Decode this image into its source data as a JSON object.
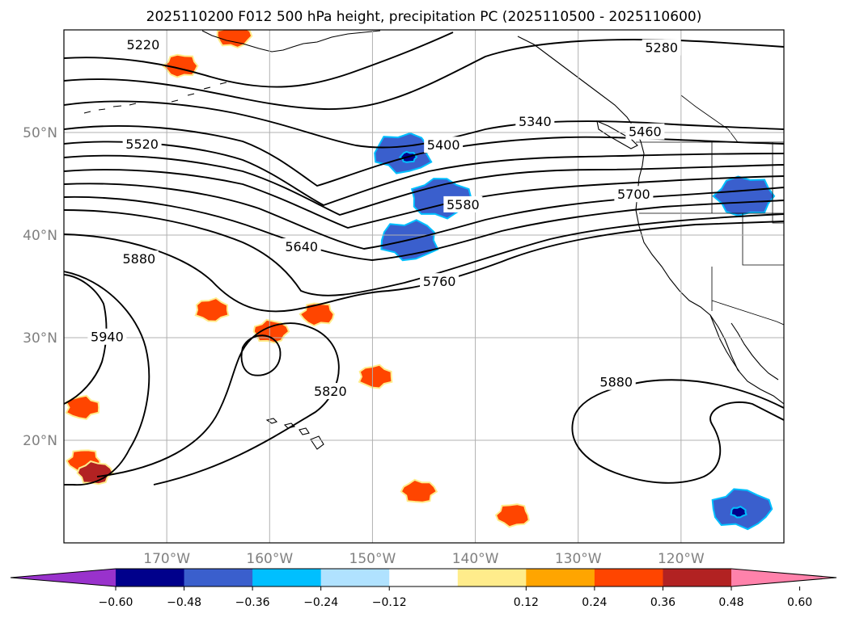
{
  "title": "2025110200 F012 500 hPa height, precipitation PC (2025110500 - 2025110600)",
  "lon_ticks": [
    {
      "lon": -170,
      "label": "170°W"
    },
    {
      "lon": -160,
      "label": "160°W"
    },
    {
      "lon": -150,
      "label": "150°W"
    },
    {
      "lon": -140,
      "label": "140°W"
    },
    {
      "lon": -130,
      "label": "130°W"
    },
    {
      "lon": -120,
      "label": "120°W"
    }
  ],
  "lat_ticks": [
    {
      "lat": 50,
      "label": "50°N"
    },
    {
      "lat": 40,
      "label": "40°N"
    },
    {
      "lat": 30,
      "label": "30°N"
    },
    {
      "lat": 20,
      "label": "20°N"
    }
  ],
  "contour_labels": [
    {
      "text": "5220",
      "lon": -172.3,
      "lat": 58.6
    },
    {
      "text": "5280",
      "lon": -121.9,
      "lat": 58.3
    },
    {
      "text": "5340",
      "lon": -134.2,
      "lat": 51.1
    },
    {
      "text": "5460",
      "lon": -123.5,
      "lat": 50.1
    },
    {
      "text": "5520",
      "lon": -172.4,
      "lat": 48.9
    },
    {
      "text": "5400",
      "lon": -143.1,
      "lat": 48.8
    },
    {
      "text": "5580",
      "lon": -141.2,
      "lat": 43.0
    },
    {
      "text": "5700",
      "lon": -124.6,
      "lat": 44.0
    },
    {
      "text": "5640",
      "lon": -156.9,
      "lat": 38.9
    },
    {
      "text": "5880",
      "lon": -172.7,
      "lat": 37.7
    },
    {
      "text": "5760",
      "lon": -143.5,
      "lat": 35.5
    },
    {
      "text": "5940",
      "lon": -175.8,
      "lat": 30.1
    },
    {
      "text": "5820",
      "lon": -154.1,
      "lat": 24.8
    },
    {
      "text": "5880",
      "lon": -126.3,
      "lat": 25.7
    }
  ],
  "colorbar": {
    "colors": [
      "#9932cc",
      "#00008b",
      "#3a5fcd",
      "#00bfff",
      "#b0e2ff",
      "#ffffff",
      "#ffec8b",
      "#ffa500",
      "#ff4500",
      "#b22222",
      "#ff82ab"
    ],
    "ticks": [
      {
        "value": -0.6,
        "label": "−0.60"
      },
      {
        "value": -0.48,
        "label": "−0.48"
      },
      {
        "value": -0.36,
        "label": "−0.36"
      },
      {
        "value": -0.24,
        "label": "−0.24"
      },
      {
        "value": -0.12,
        "label": "−0.12"
      },
      {
        "value": 0.12,
        "label": "0.12"
      },
      {
        "value": 0.24,
        "label": "0.24"
      },
      {
        "value": 0.36,
        "label": "0.36"
      },
      {
        "value": 0.48,
        "label": "0.48"
      },
      {
        "value": 0.6,
        "label": "0.60"
      }
    ]
  },
  "precip_blobs": [
    {
      "sign": "negative",
      "level": 2,
      "lon": -147.0,
      "lat": 48.0
    },
    {
      "sign": "negative",
      "level": 1,
      "lon": -146.5,
      "lat": 47.6
    },
    {
      "sign": "negative",
      "level": 2,
      "lon": -143.4,
      "lat": 43.6
    },
    {
      "sign": "negative",
      "level": 2,
      "lon": -146.4,
      "lat": 39.5
    },
    {
      "sign": "negative",
      "level": 2,
      "lon": -113.8,
      "lat": 43.8
    },
    {
      "sign": "negative",
      "level": 2,
      "lon": -114.2,
      "lat": 13.3
    },
    {
      "sign": "negative",
      "level": 1,
      "lon": -114.4,
      "lat": 13.0
    },
    {
      "sign": "positive",
      "level": 3,
      "lon": -168.6,
      "lat": 56.5
    },
    {
      "sign": "positive",
      "level": 3,
      "lon": -163.5,
      "lat": 59.4
    },
    {
      "sign": "positive",
      "level": 3,
      "lon": -165.6,
      "lat": 32.7
    },
    {
      "sign": "positive",
      "level": 3,
      "lon": -155.3,
      "lat": 32.3
    },
    {
      "sign": "positive",
      "level": 3,
      "lon": -159.9,
      "lat": 30.6
    },
    {
      "sign": "positive",
      "level": 3,
      "lon": -149.7,
      "lat": 26.2
    },
    {
      "sign": "positive",
      "level": 3,
      "lon": -178.0,
      "lat": 18.0
    },
    {
      "sign": "positive",
      "level": 4,
      "lon": -177.0,
      "lat": 16.8
    },
    {
      "sign": "positive",
      "level": 3,
      "lon": -178.2,
      "lat": 23.2
    },
    {
      "sign": "positive",
      "level": 3,
      "lon": -136.3,
      "lat": 12.7
    },
    {
      "sign": "positive",
      "level": 3,
      "lon": -145.5,
      "lat": 15.0
    }
  ]
}
